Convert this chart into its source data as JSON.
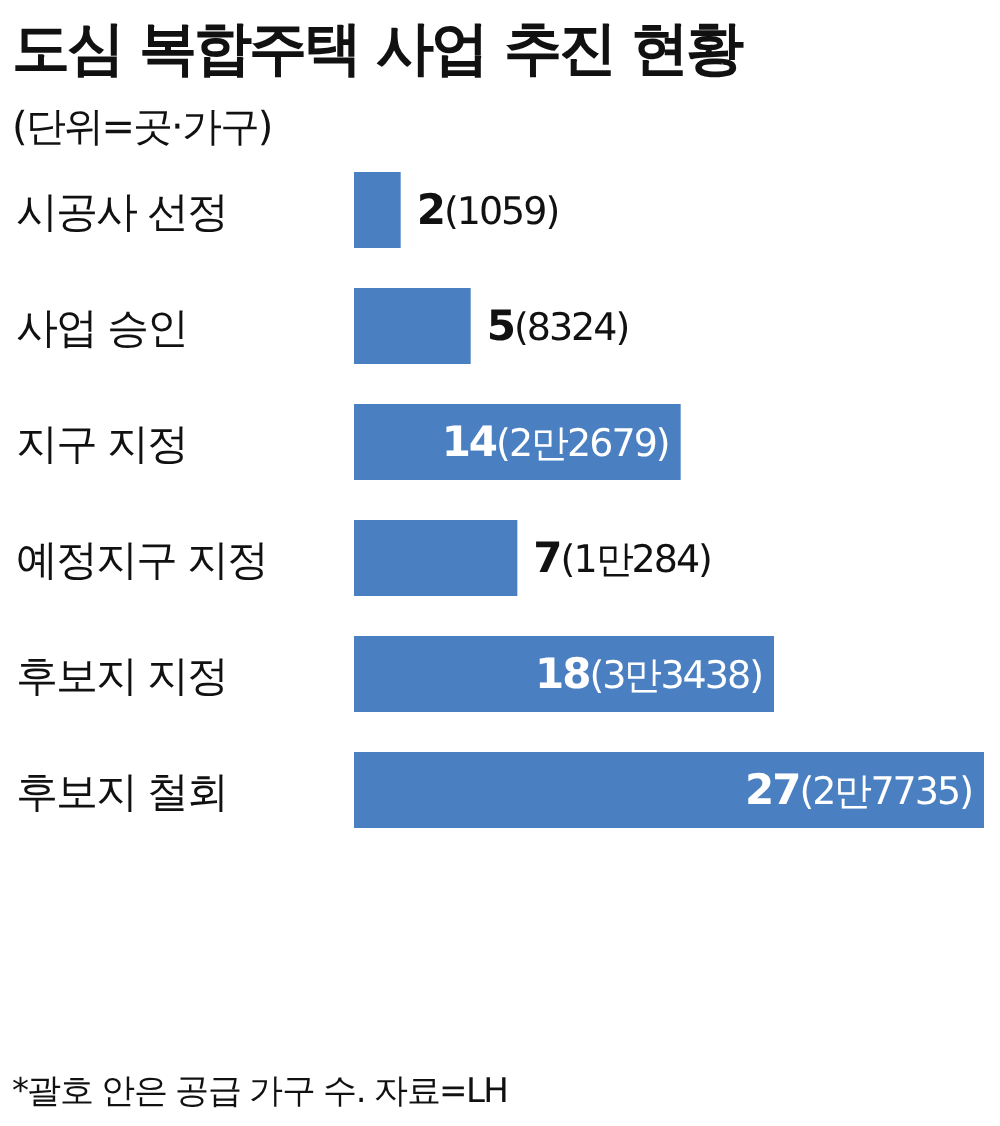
{
  "chart_data": {
    "type": "bar",
    "orientation": "horizontal",
    "title": "도심 복합주택 사업 추진 현황",
    "subtitle": "(단위=곳·가구)",
    "categories": [
      "시공사 선정",
      "사업 승인",
      "지구 지정",
      "예정지구 지정",
      "후보지 지정",
      "후보지 철회"
    ],
    "values": [
      2,
      5,
      14,
      7,
      18,
      27
    ],
    "value_labels": [
      "2(1059)",
      "5(8324)",
      "14(2만2679)",
      "7(1만284)",
      "18(3만3438)",
      "27(2만7735)"
    ],
    "color": "#4a7fc1",
    "annotations": [
      "*괄호 안은 공급 가구 수. 자료=LH"
    ]
  }
}
